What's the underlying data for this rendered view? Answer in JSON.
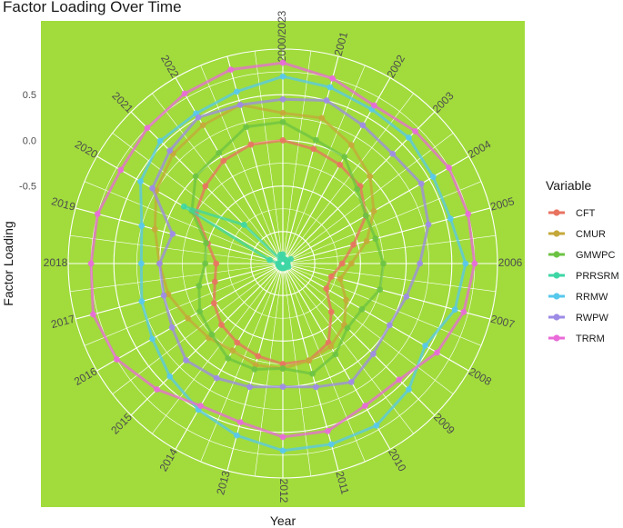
{
  "chart_data": {
    "type": "line",
    "coord": "polar",
    "title": "Factor Loading Over Time",
    "xlabel": "Year",
    "ylabel": "Factor Loading",
    "categories": [
      "2000",
      "2001",
      "2002",
      "2003",
      "2004",
      "2005",
      "2006",
      "2007",
      "2008",
      "2009",
      "2010",
      "2011",
      "2012",
      "2013",
      "2014",
      "2015",
      "2016",
      "2017",
      "2018",
      "2019",
      "2020",
      "2021",
      "2022",
      "2023"
    ],
    "category_tick_labels": [
      "2000/2023",
      "2001",
      "2002",
      "2003",
      "2004",
      "2005",
      "2006",
      "2007",
      "2008",
      "2009",
      "2010",
      "2011",
      "2012",
      "2013",
      "2014",
      "2015",
      "2016",
      "2017",
      "2018",
      "2019",
      "2020",
      "2021",
      "2022"
    ],
    "y_ticks": [
      0.5,
      0.0,
      -0.5
    ],
    "y_tick_labels": [
      "0.5",
      "0.0",
      "-0.5"
    ],
    "ylim": [
      -1.35,
      1.0
    ],
    "background_color": "#a1dc3c",
    "grid": true,
    "legend": {
      "title": "Variable",
      "position": "right"
    },
    "series": [
      {
        "name": "CFT",
        "color": "#e8735f",
        "values": [
          0.0,
          -0.05,
          -0.1,
          -0.15,
          -0.3,
          -0.55,
          -0.7,
          -0.8,
          -0.8,
          -0.6,
          -0.35,
          -0.25,
          -0.25,
          -0.3,
          -0.35,
          -0.4,
          -0.48,
          -0.58,
          -0.62,
          -0.5,
          -0.25,
          -0.15,
          -0.05,
          0.0
        ]
      },
      {
        "name": "CMUR",
        "color": "#c5a83a",
        "values": [
          0.3,
          0.3,
          0.15,
          0.0,
          -0.2,
          -0.4,
          -0.6,
          -0.7,
          -0.55,
          -0.4,
          -0.3,
          -0.25,
          -0.2,
          -0.2,
          -0.25,
          -0.2,
          -0.15,
          -0.05,
          0.0,
          0.1,
          0.25,
          0.35,
          0.4,
          0.45
        ]
      },
      {
        "name": "GMWPC",
        "color": "#6cc342",
        "values": [
          0.2,
          0.05,
          0.0,
          -0.2,
          -0.3,
          -0.3,
          -0.25,
          -0.25,
          -0.35,
          -0.35,
          -0.2,
          -0.1,
          -0.2,
          -0.15,
          -0.15,
          -0.25,
          -0.3,
          -0.4,
          -0.5,
          -0.48,
          -0.2,
          0.0,
          0.05,
          0.2
        ]
      },
      {
        "name": "PRRSRM",
        "color": "#3ed6a4",
        "values": [
          -1.25,
          -1.3,
          -1.3,
          -1.3,
          -1.25,
          -1.3,
          -1.3,
          -1.3,
          -1.28,
          -1.3,
          -1.3,
          -1.3,
          -1.3,
          -1.3,
          -1.3,
          -1.3,
          -1.3,
          -1.3,
          -1.3,
          -1.2,
          -0.1,
          -0.75,
          -1.3,
          -1.25
        ]
      },
      {
        "name": "RRMW",
        "color": "#56c8ec",
        "values": [
          0.7,
          0.65,
          0.6,
          0.6,
          0.55,
          0.55,
          0.65,
          0.6,
          0.45,
          0.6,
          0.7,
          0.7,
          0.7,
          0.6,
          0.5,
          0.4,
          0.3,
          0.25,
          0.2,
          0.25,
          0.45,
          0.55,
          0.55,
          0.6
        ]
      },
      {
        "name": "RWPW",
        "color": "#9d8be6",
        "values": [
          0.45,
          0.5,
          0.4,
          0.35,
          0.4,
          0.3,
          0.15,
          0.05,
          0.0,
          0.05,
          0.15,
          0.05,
          0.0,
          0.05,
          0.1,
          0.15,
          0.05,
          0.0,
          0.0,
          -0.1,
          0.3,
          0.4,
          0.5,
          0.45
        ]
      },
      {
        "name": "TRRM",
        "color": "#e96ad8",
        "values": [
          0.85,
          0.75,
          0.65,
          0.7,
          0.75,
          0.75,
          0.75,
          0.7,
          0.6,
          0.45,
          0.45,
          0.55,
          0.55,
          0.45,
          0.45,
          0.6,
          0.75,
          0.8,
          0.75,
          0.75,
          0.7,
          0.75,
          0.8,
          0.85
        ]
      }
    ]
  }
}
